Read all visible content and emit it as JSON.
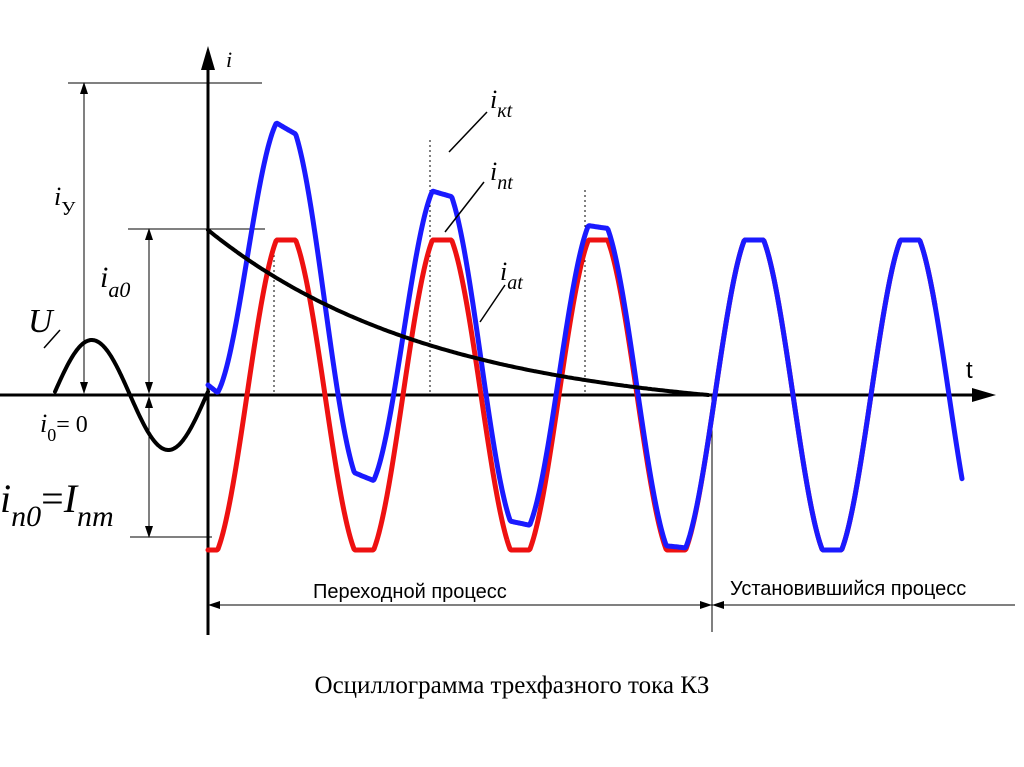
{
  "diagram": {
    "axis_labels": {
      "y": "i",
      "x": "t"
    },
    "annotations": {
      "voltage": "U",
      "i_y_base": "i",
      "i_y_sub": "У",
      "i_a0_base": "i",
      "i_a0_sub": "а0",
      "i_0_base": "i",
      "i_0_sub": "0",
      "i_0_eq": "= 0",
      "i_n0_base": "i",
      "i_n0_sub": "п0",
      "i_n0_eq": "=",
      "i_nm_base": "I",
      "i_nm_sub": "пm",
      "i_kt_base": "i",
      "i_kt_sub": "кt",
      "i_nt_base": "i",
      "i_nt_sub": "пt",
      "i_at_base": "i",
      "i_at_sub": "аt"
    },
    "regions": {
      "transient": "Переходной процесс",
      "steady": "Установившийся процесс"
    },
    "colors": {
      "total_current": "#1a1aff",
      "periodic_current": "#ee1111",
      "aperiodic_current": "#000000",
      "voltage": "#000000"
    }
  },
  "caption": "Осциллограмма трехфазного тока КЗ"
}
